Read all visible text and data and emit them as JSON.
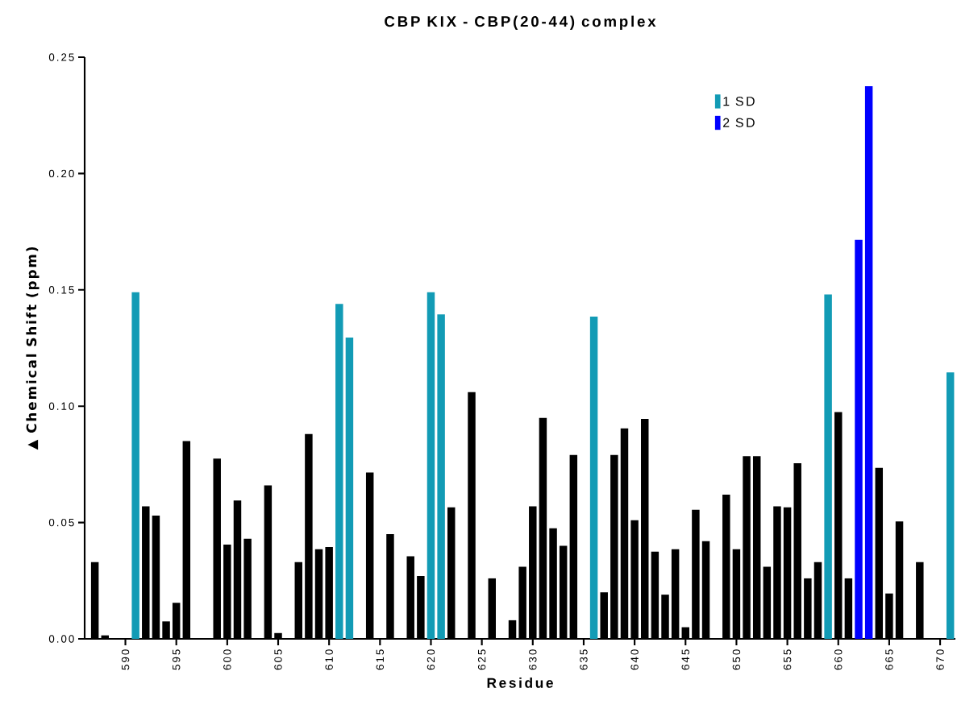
{
  "chart_data": {
    "type": "bar",
    "title": "CBP KIX - CBP(20-44) complex",
    "xlabel": "Residue",
    "ylabel": "▲ Chemical Shift (ppm)",
    "xlim": [
      586,
      671.5
    ],
    "ylim": [
      0,
      0.25
    ],
    "xticks": [
      590,
      595,
      600,
      605,
      610,
      615,
      620,
      625,
      630,
      635,
      640,
      645,
      650,
      655,
      660,
      665,
      670
    ],
    "yticks": [
      {
        "value": 0,
        "label": "0.00"
      },
      {
        "value": 0.05,
        "label": "0.05"
      },
      {
        "value": 0.1,
        "label": "0.10"
      },
      {
        "value": 0.15,
        "label": "0.15"
      },
      {
        "value": 0.2,
        "label": "0.20"
      },
      {
        "value": 0.25,
        "label": "0.25"
      }
    ],
    "legend": "top right",
    "series": [
      {
        "color": "#000000",
        "x": [
          587,
          588,
          592,
          593,
          594,
          595,
          596,
          599,
          600,
          601,
          602,
          604,
          605,
          607,
          608,
          609,
          610,
          614,
          616,
          618,
          619,
          622,
          624,
          626,
          628,
          629,
          630,
          631,
          632,
          633,
          634,
          637,
          638,
          639,
          640,
          641,
          642,
          643,
          644,
          645,
          646,
          647,
          649,
          650,
          651,
          652,
          653,
          654,
          655,
          656,
          657,
          658,
          660,
          661,
          664,
          665,
          666,
          668
        ],
        "values": [
          0.033,
          0.0015,
          0.057,
          0.053,
          0.0075,
          0.0155,
          0.085,
          0.0775,
          0.0405,
          0.0595,
          0.043,
          0.066,
          0.0025,
          0.033,
          0.088,
          0.0385,
          0.0395,
          0.0715,
          0.045,
          0.0355,
          0.027,
          0.0565,
          0.106,
          0.026,
          0.008,
          0.031,
          0.057,
          0.095,
          0.0475,
          0.04,
          0.079,
          0.02,
          0.079,
          0.0905,
          0.051,
          0.0945,
          0.0375,
          0.019,
          0.0385,
          0.005,
          0.0555,
          0.042,
          0.062,
          0.0385,
          0.0785,
          0.0785,
          0.031,
          0.057,
          0.0565,
          0.0755,
          0.026,
          0.033,
          0.0975,
          0.026,
          0.0735,
          0.0195,
          0.0505,
          0.033
        ]
      },
      {
        "name": "1 SD",
        "color": "#129bb5",
        "x": [
          591,
          611,
          612,
          620,
          621,
          636,
          659,
          671
        ],
        "values": [
          0.149,
          0.144,
          0.1295,
          0.149,
          0.1395,
          0.1385,
          0.148,
          0.1145
        ]
      },
      {
        "name": "2 SD",
        "color": "#0000ff",
        "x": [
          662,
          663
        ],
        "values": [
          0.1715,
          0.2375
        ]
      }
    ]
  }
}
